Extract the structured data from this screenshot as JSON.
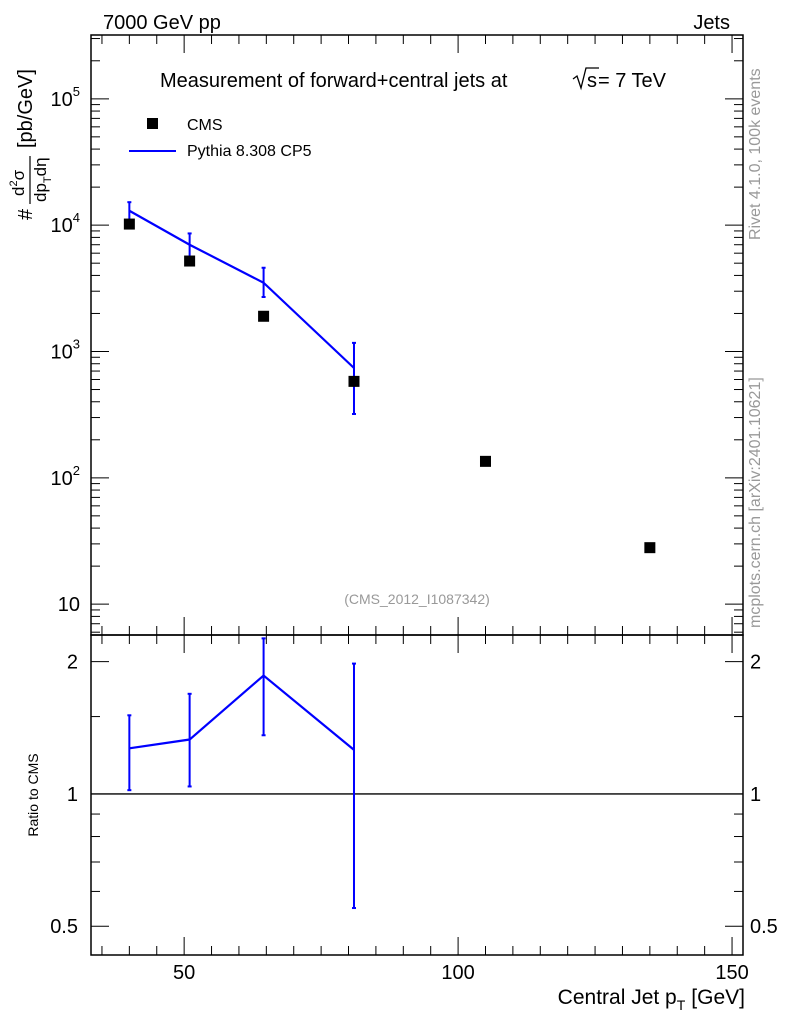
{
  "header": {
    "left": "7000 GeV pp",
    "right": "Jets"
  },
  "side_text": {
    "rivet": "Rivet 4.1.0,  100k events",
    "mcplots": "mcplots.cern.ch [arXiv:2401.10621]"
  },
  "colors": {
    "data": "#000000",
    "mc": "#0000ff",
    "axis": "#000000",
    "grey": "#999999"
  },
  "chart_data": [
    {
      "type": "scatter",
      "panel": "main",
      "title_prefix": "Measurement of forward+central jets at",
      "title_sqrt": "s",
      "title_suffix": "= 7 TeV",
      "analysis_id": "(CMS_2012_I1087342)",
      "ylabel": "# d²σ/dp_T dη [pb/GeV]",
      "ylabel_parts": {
        "hash": "#",
        "num": "d",
        "num_sup": "2",
        "num_sym": "σ",
        "den": "dp",
        "den_sub": "T",
        "den_tail": "dη",
        "unit": "[pb/GeV]"
      },
      "y_scale": "log",
      "xlim": [
        33,
        152
      ],
      "ylim": [
        5.7,
        320000
      ],
      "y_tick_labels": [
        {
          "value": 10,
          "label": "10"
        },
        {
          "value": 100,
          "label": "10",
          "exp": "2"
        },
        {
          "value": 1000,
          "label": "10",
          "exp": "3"
        },
        {
          "value": 10000,
          "label": "10",
          "exp": "4"
        },
        {
          "value": 100000,
          "label": "10",
          "exp": "5"
        }
      ],
      "legend": {
        "placement": "top-left",
        "entries": [
          "CMS",
          "Pythia 8.308 CP5"
        ]
      },
      "series": [
        {
          "name": "CMS",
          "style": "markers",
          "x": [
            40,
            51,
            64.5,
            81,
            105,
            135
          ],
          "y": [
            10200,
            5200,
            1900,
            580,
            135,
            28
          ]
        },
        {
          "name": "Pythia 8.308 CP5",
          "style": "line",
          "x": [
            40,
            51,
            64.5,
            81
          ],
          "y": [
            13000,
            7000,
            3500,
            740
          ],
          "err_low": [
            10900,
            5500,
            2700,
            320
          ],
          "err_high": [
            15200,
            8600,
            4600,
            1170
          ]
        }
      ]
    },
    {
      "type": "line",
      "panel": "ratio",
      "ylabel": "Ratio to CMS",
      "xlabel": "Central Jet p_T [GeV]",
      "xlabel_parts": {
        "main": "Central Jet p",
        "sub": "T",
        "unit": "[GeV]"
      },
      "y_scale": "log",
      "xlim": [
        33,
        152
      ],
      "ylim": [
        0.43,
        2.3
      ],
      "x_tick_labels": [
        {
          "value": 50,
          "label": "50"
        },
        {
          "value": 100,
          "label": "100"
        },
        {
          "value": 150,
          "label": "150"
        }
      ],
      "y_tick_labels": [
        {
          "value": 0.5,
          "label": "0.5"
        },
        {
          "value": 1,
          "label": "1"
        },
        {
          "value": 2,
          "label": "2"
        }
      ],
      "reference_line": 1,
      "series": [
        {
          "name": "Pythia 8.308 CP5",
          "style": "line",
          "x": [
            40,
            51,
            64.5,
            81
          ],
          "y": [
            1.27,
            1.33,
            1.86,
            1.26
          ],
          "err_low": [
            1.02,
            1.04,
            1.36,
            0.55
          ],
          "err_high": [
            1.51,
            1.69,
            2.26,
            1.98
          ]
        }
      ]
    }
  ]
}
